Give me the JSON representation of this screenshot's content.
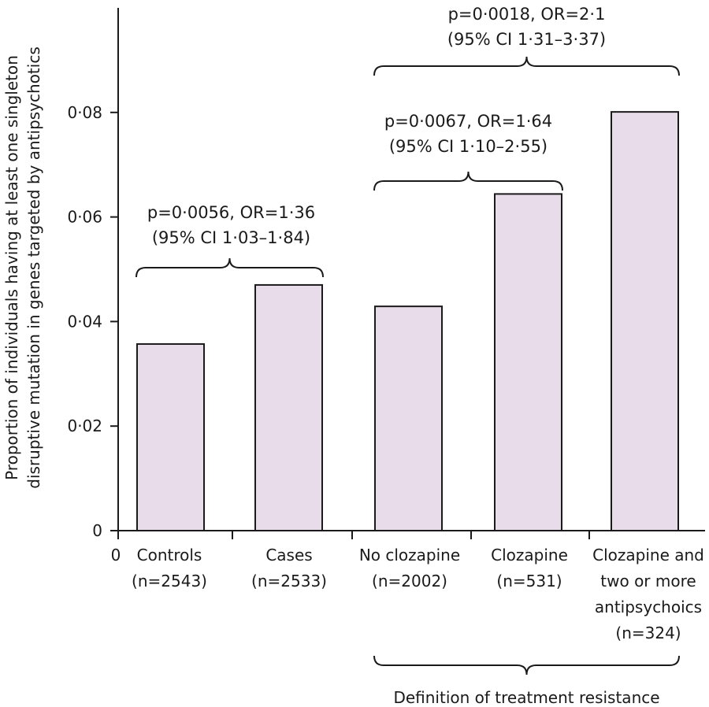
{
  "chart_data": {
    "type": "bar",
    "ylabel_lines": [
      "Proportion of individuals having at least one singleton",
      "disruptive mutation in genes targeted by antipsychotics"
    ],
    "xlabel_origin": "0",
    "ylim": [
      0,
      0.1
    ],
    "yticks": [
      {
        "value": 0,
        "label": "0"
      },
      {
        "value": 0.02,
        "label": "0·02"
      },
      {
        "value": 0.04,
        "label": "0·04"
      },
      {
        "value": 0.06,
        "label": "0·06"
      },
      {
        "value": 0.08,
        "label": "0·08"
      }
    ],
    "categories": [
      {
        "lines": [
          "Controls",
          "(n=2543)"
        ]
      },
      {
        "lines": [
          "Cases",
          "(n=2533)"
        ]
      },
      {
        "lines": [
          "No clozapine",
          "(n=2002)"
        ]
      },
      {
        "lines": [
          "Clozapine",
          "(n=531)"
        ]
      },
      {
        "lines": [
          "Clozapine and",
          "two or more",
          "antipsychoics",
          "(n=324)"
        ]
      }
    ],
    "values": [
      0.0357,
      0.047,
      0.0429,
      0.0644,
      0.0801
    ],
    "grid": false,
    "annotations": [
      {
        "from": 0,
        "to": 1,
        "lines": [
          "p=0·0056, OR=1·36",
          "(95% CI 1·03–1·84)"
        ]
      },
      {
        "from": 2,
        "to": 3,
        "lines": [
          "p=0·0067, OR=1·64",
          "(95% CI 1·10–2·55)"
        ]
      },
      {
        "from": 2,
        "to": 4,
        "lines": [
          "p=0·0018, OR=2·1",
          "(95% CI 1·31–3·37)"
        ]
      }
    ],
    "group_label": {
      "from": 2,
      "to": 4,
      "text": "Definition of treatment resistance"
    }
  }
}
